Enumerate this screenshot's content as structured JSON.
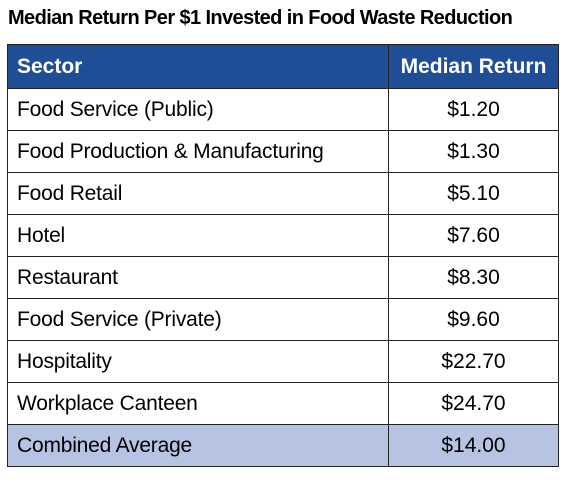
{
  "title": "Median Return Per $1 Invested in Food Waste Reduction",
  "table": {
    "headers": {
      "sector": "Sector",
      "return": "Median Return"
    },
    "rows": [
      {
        "sector": "Food Service (Public)",
        "value": "$1.20"
      },
      {
        "sector": "Food Production & Manufacturing",
        "value": "$1.30"
      },
      {
        "sector": "Food Retail",
        "value": "$5.10"
      },
      {
        "sector": "Hotel",
        "value": "$7.60"
      },
      {
        "sector": "Restaurant",
        "value": "$8.30"
      },
      {
        "sector": "Food Service (Private)",
        "value": "$9.60"
      },
      {
        "sector": "Hospitality",
        "value": "$22.70"
      },
      {
        "sector": "Workplace Canteen",
        "value": "$24.70"
      },
      {
        "sector": "Combined Average",
        "value": "$14.00"
      }
    ]
  },
  "colors": {
    "header_bg": "#1f4e96",
    "header_text": "#ffffff",
    "total_row_bg": "#b7c3e3"
  },
  "chart_data": {
    "type": "table",
    "title": "Median Return Per $1 Invested in Food Waste Reduction",
    "columns": [
      "Sector",
      "Median Return"
    ],
    "categories": [
      "Food Service (Public)",
      "Food Production & Manufacturing",
      "Food Retail",
      "Hotel",
      "Restaurant",
      "Food Service (Private)",
      "Hospitality",
      "Workplace Canteen",
      "Combined Average"
    ],
    "values": [
      1.2,
      1.3,
      5.1,
      7.6,
      8.3,
      9.6,
      22.7,
      24.7,
      14.0
    ],
    "unit": "$"
  }
}
